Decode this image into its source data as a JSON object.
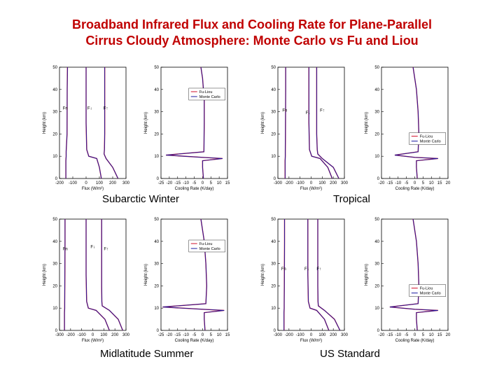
{
  "title_line1": "Broadband Infrared Flux and Cooling Rate for Plane-Parallel",
  "title_line2": "Cirrus Cloudy Atmosphere: Monte Carlo vs Fu and Liou",
  "colors": {
    "title": "#c00000",
    "fu_liou": "#d0102a",
    "monte_carlo": "#1a1aa0"
  },
  "chart_data": [
    {
      "id": "subarctic-winter",
      "caption": "Subarctic Winter",
      "flux": {
        "type": "line",
        "xlabel": "Flux (W/m²)",
        "ylabel": "Height (km)",
        "xlim": [
          -200,
          300
        ],
        "ylim": [
          0,
          50
        ],
        "xticks": [
          -200,
          -100,
          0,
          100,
          200,
          300
        ],
        "yticks": [
          0,
          10,
          20,
          30,
          40,
          50
        ],
        "labels": [
          {
            "text": "Fn",
            "x": -175,
            "y": 31
          },
          {
            "text": "F↓",
            "x": 10,
            "y": 31
          },
          {
            "text": "F↑",
            "x": 130,
            "y": 31
          }
        ],
        "series": [
          {
            "name": "Fn",
            "x": [
              -140,
              -142,
              -143,
              -150,
              -150,
              -152,
              -152
            ],
            "y": [
              50,
              40,
              20,
              12,
              10,
              8,
              0
            ]
          },
          {
            "name": "F↓",
            "x": [
              0,
              0,
              0,
              5,
              20,
              80,
              100,
              115
            ],
            "y": [
              50,
              40,
              25,
              13,
              10,
              9,
              5,
              0
            ]
          },
          {
            "name": "F↑",
            "x": [
              140,
              140,
              140,
              138,
              135,
              150,
              200,
              240
            ],
            "y": [
              50,
              40,
              20,
              13,
              11,
              9,
              5,
              0
            ]
          }
        ]
      },
      "cooling": {
        "type": "line",
        "xlabel": "Cooling Rate (K/day)",
        "ylabel": "Height (km)",
        "xlim": [
          -25,
          15
        ],
        "ylim": [
          0,
          50
        ],
        "xticks": [
          -25,
          -20,
          -15,
          -10,
          -5,
          0,
          5,
          10,
          15
        ],
        "yticks": [
          0,
          10,
          20,
          30,
          40,
          50
        ],
        "legend": [
          "Fu-Liou",
          "Monte Carlo"
        ],
        "legend_position": "top-right",
        "series": [
          {
            "name": "Fu-Liou",
            "x": [
              -1,
              0,
              0.5,
              1,
              1,
              0.8,
              -22,
              0,
              12,
              0,
              0,
              0.5
            ],
            "y": [
              50,
              45,
              40,
              35,
              25,
              12,
              10.5,
              9.5,
              9,
              8,
              5,
              0
            ]
          },
          {
            "name": "Monte Carlo",
            "x": [
              -1,
              0,
              0.5,
              1,
              1,
              0.8,
              -22,
              0,
              12,
              0,
              0,
              0.5
            ],
            "y": [
              50,
              45,
              40,
              35,
              25,
              12,
              10.5,
              9.5,
              9,
              8,
              5,
              0
            ]
          }
        ]
      }
    },
    {
      "id": "tropical",
      "caption": "Tropical",
      "flux": {
        "type": "line",
        "xlabel": "Flux (W/m²)",
        "ylabel": "Height (km)",
        "xlim": [
          -300,
          300
        ],
        "ylim": [
          0,
          50
        ],
        "xticks": [
          -300,
          -200,
          -100,
          0,
          100,
          200,
          300
        ],
        "yticks": [
          0,
          10,
          20,
          30,
          40,
          50
        ],
        "labels": [
          {
            "text": "Fn",
            "x": -260,
            "y": 30
          },
          {
            "text": "F↓",
            "x": -50,
            "y": 29
          },
          {
            "text": "F↑",
            "x": 80,
            "y": 30
          }
        ],
        "series": [
          {
            "name": "Fn",
            "x": [
              -230,
              -230,
              -232,
              -233,
              -233,
              -235,
              -235
            ],
            "y": [
              50,
              40,
              20,
              12,
              10,
              8,
              0
            ]
          },
          {
            "name": "F↓",
            "x": [
              -20,
              -20,
              -20,
              -15,
              5,
              80,
              150,
              190
            ],
            "y": [
              50,
              40,
              25,
              13,
              10,
              9,
              5,
              0
            ]
          },
          {
            "name": "F↑",
            "x": [
              50,
              50,
              50,
              55,
              60,
              100,
              200,
              250
            ],
            "y": [
              50,
              40,
              20,
              13,
              11,
              9,
              5,
              0
            ]
          }
        ]
      },
      "cooling": {
        "type": "line",
        "xlabel": "Cooling Rate (K/day)",
        "ylabel": "Height (km)",
        "xlim": [
          -20,
          20
        ],
        "ylim": [
          0,
          50
        ],
        "xticks": [
          -20,
          -15,
          -10,
          -5,
          0,
          5,
          10,
          15,
          20
        ],
        "yticks": [
          0,
          10,
          20,
          30,
          40,
          50
        ],
        "legend": [
          "Fu-Liou",
          "Monte Carlo"
        ],
        "legend_position": "right",
        "series": [
          {
            "name": "Fu-Liou",
            "x": [
              -1,
              0,
              1,
              2,
              2.5,
              2,
              -12,
              0,
              14,
              1,
              1,
              1.5
            ],
            "y": [
              50,
              45,
              40,
              30,
              20,
              12,
              10.5,
              9.5,
              9,
              8,
              5,
              0
            ]
          },
          {
            "name": "Monte Carlo",
            "x": [
              -1,
              0,
              1,
              2,
              2.5,
              2,
              -12,
              0,
              14,
              1,
              1,
              1.5
            ],
            "y": [
              50,
              45,
              40,
              30,
              20,
              12,
              10.5,
              9.5,
              9,
              8,
              5,
              0
            ]
          }
        ]
      }
    },
    {
      "id": "midlatitude-summer",
      "caption": "Midlatitude Summer",
      "flux": {
        "type": "line",
        "xlabel": "Flux (W/m²)",
        "ylabel": "Height (km)",
        "xlim": [
          -300,
          300
        ],
        "ylim": [
          0,
          50
        ],
        "xticks": [
          -300,
          -200,
          -100,
          0,
          100,
          200,
          300
        ],
        "yticks": [
          0,
          10,
          20,
          30,
          40,
          50
        ],
        "labels": [
          {
            "text": "Fn",
            "x": -270,
            "y": 36
          },
          {
            "text": "F↓",
            "x": -20,
            "y": 37
          },
          {
            "text": "F↑",
            "x": 100,
            "y": 36
          }
        ],
        "series": [
          {
            "name": "Fn",
            "x": [
              -250,
              -250,
              -252,
              -253,
              -253,
              -255,
              -255
            ],
            "y": [
              50,
              40,
              20,
              12,
              10,
              8,
              0
            ]
          },
          {
            "name": "F↓",
            "x": [
              -60,
              -60,
              -60,
              -55,
              -40,
              30,
              110,
              150
            ],
            "y": [
              50,
              40,
              25,
              13,
              10,
              9,
              5,
              0
            ]
          },
          {
            "name": "F↑",
            "x": [
              80,
              80,
              80,
              82,
              85,
              150,
              230,
              270
            ],
            "y": [
              50,
              40,
              20,
              13,
              11,
              9,
              5,
              0
            ]
          }
        ]
      },
      "cooling": {
        "type": "line",
        "xlabel": "Cooling Rate (K/day)",
        "ylabel": "Height (km)",
        "xlim": [
          -25,
          15
        ],
        "ylim": [
          0,
          50
        ],
        "xticks": [
          -25,
          -20,
          -15,
          -10,
          -5,
          0,
          5,
          10,
          15
        ],
        "yticks": [
          0,
          10,
          20,
          30,
          40,
          50
        ],
        "legend": [
          "Fu-Liou",
          "Monte Carlo"
        ],
        "legend_position": "top-right",
        "series": [
          {
            "name": "Fu-Liou",
            "x": [
              -1,
              0,
              1,
              2,
              2.5,
              2,
              -24,
              0,
              13,
              1,
              1,
              1.5
            ],
            "y": [
              50,
              45,
              40,
              30,
              20,
              12,
              10.5,
              9.5,
              9,
              8,
              5,
              0
            ]
          },
          {
            "name": "Monte Carlo",
            "x": [
              -1,
              0,
              1,
              2,
              2.5,
              2,
              -24,
              0,
              13,
              1,
              1,
              1.5
            ],
            "y": [
              50,
              45,
              40,
              30,
              20,
              12,
              10.5,
              9.5,
              9,
              8,
              5,
              0
            ]
          }
        ]
      }
    },
    {
      "id": "us-standard",
      "caption": "US Standard",
      "flux": {
        "type": "line",
        "xlabel": "Flux (W/m²)",
        "ylabel": "Height (km)",
        "xlim": [
          -300,
          300
        ],
        "ylim": [
          0,
          50
        ],
        "xticks": [
          -300,
          -200,
          -100,
          0,
          100,
          200,
          300
        ],
        "yticks": [
          0,
          10,
          20,
          30,
          40,
          50
        ],
        "labels": [
          {
            "text": "Fn",
            "x": -270,
            "y": 27
          },
          {
            "text": "F↓",
            "x": -60,
            "y": 27
          },
          {
            "text": "F↑",
            "x": 50,
            "y": 27
          }
        ],
        "series": [
          {
            "name": "Fn",
            "x": [
              -240,
              -240,
              -242,
              -243,
              -243,
              -245,
              -245
            ],
            "y": [
              50,
              40,
              20,
              12,
              10,
              8,
              0
            ]
          },
          {
            "name": "F↓",
            "x": [
              -30,
              -30,
              -30,
              -25,
              -10,
              50,
              120,
              160
            ],
            "y": [
              50,
              40,
              25,
              13,
              10,
              9,
              5,
              0
            ]
          },
          {
            "name": "F↑",
            "x": [
              60,
              60,
              60,
              62,
              65,
              120,
              210,
              260
            ],
            "y": [
              50,
              40,
              20,
              13,
              11,
              9,
              5,
              0
            ]
          }
        ]
      },
      "cooling": {
        "type": "line",
        "xlabel": "Cooling Rate (K/day)",
        "ylabel": "Height (km)",
        "xlim": [
          -20,
          20
        ],
        "ylim": [
          0,
          50
        ],
        "xticks": [
          -20,
          -15,
          -10,
          -5,
          0,
          5,
          10,
          15,
          20
        ],
        "yticks": [
          0,
          10,
          20,
          30,
          40,
          50
        ],
        "legend": [
          "Fu-Liou",
          "Monte Carlo"
        ],
        "legend_position": "right",
        "series": [
          {
            "name": "Fu-Liou",
            "x": [
              -1,
              0,
              1,
              2,
              2.5,
              2,
              -15,
              0,
              14,
              1,
              1,
              1.5
            ],
            "y": [
              50,
              45,
              40,
              30,
              20,
              12,
              10.5,
              9.5,
              9,
              8,
              5,
              0
            ]
          },
          {
            "name": "Monte Carlo",
            "x": [
              -1,
              0,
              1,
              2,
              2.5,
              2,
              -15,
              0,
              14,
              1,
              1,
              1.5
            ],
            "y": [
              50,
              45,
              40,
              30,
              20,
              12,
              10.5,
              9.5,
              9,
              8,
              5,
              0
            ]
          }
        ]
      }
    }
  ]
}
